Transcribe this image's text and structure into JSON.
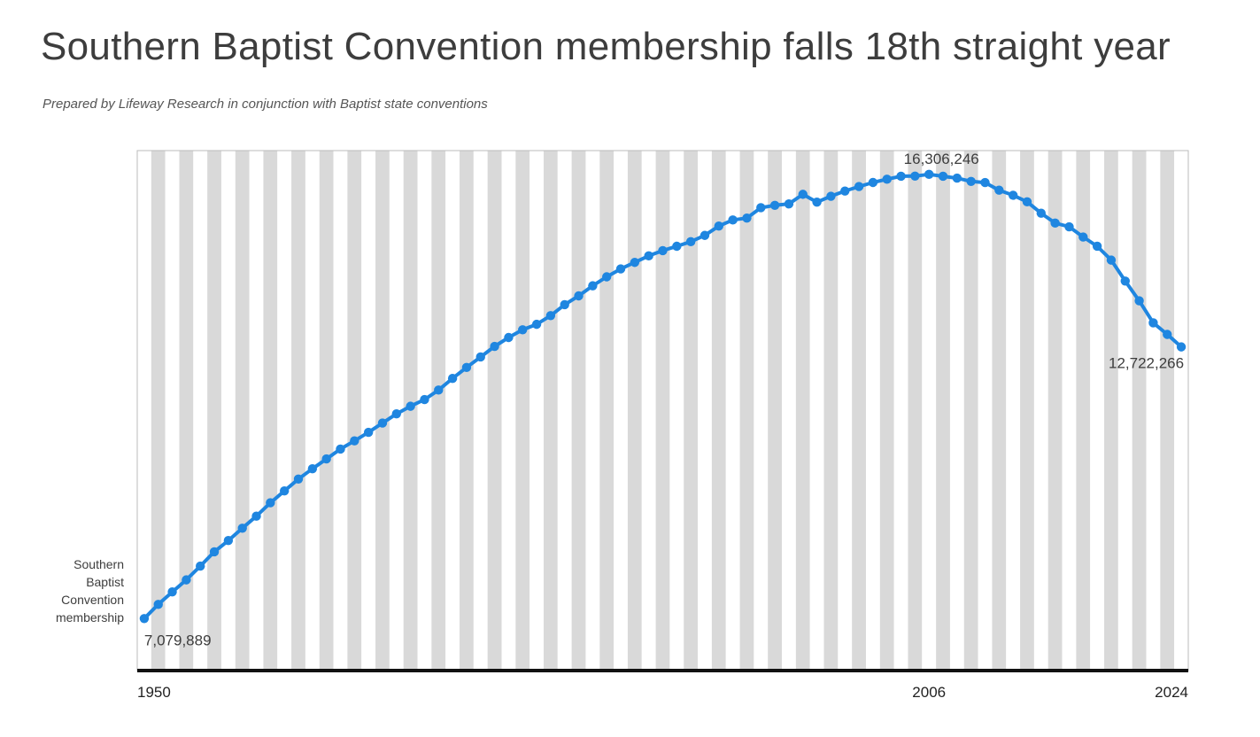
{
  "title": "Southern Baptist Convention membership falls 18th straight year",
  "subtitle": "Prepared by Lifeway Research in conjunction with Baptist state conventions",
  "colors": {
    "line": "#1f86e0",
    "stripe_gray": "#d9d9d9",
    "stripe_white": "#ffffff",
    "axis": "#111111",
    "text": "#3d3d3d"
  },
  "chart_data": {
    "type": "line",
    "title": "Southern Baptist Convention membership falls 18th straight year",
    "series_label": "Southern Baptist Convention membership",
    "series_label_lines": [
      "Southern",
      "Baptist",
      "Convention",
      "membership"
    ],
    "x_tick_labels": [
      "1950",
      "2006",
      "2024"
    ],
    "x_ticks": [
      1950,
      2006,
      2024
    ],
    "xlim": [
      1949.5,
      2024.5
    ],
    "ylim": [
      6000000,
      16800000
    ],
    "background": "alternating vertical year stripes",
    "annotations": [
      {
        "x": 1950,
        "label": "7,079,889"
      },
      {
        "x": 2006,
        "label": "16,306,246"
      },
      {
        "x": 2024,
        "label": "12,722,266"
      }
    ],
    "series": [
      {
        "name": "Southern Baptist Convention membership",
        "x": [
          1950,
          1951,
          1952,
          1953,
          1954,
          1955,
          1956,
          1957,
          1958,
          1959,
          1960,
          1961,
          1962,
          1963,
          1964,
          1965,
          1966,
          1967,
          1968,
          1969,
          1970,
          1971,
          1972,
          1973,
          1974,
          1975,
          1976,
          1977,
          1978,
          1979,
          1980,
          1981,
          1982,
          1983,
          1984,
          1985,
          1986,
          1987,
          1988,
          1989,
          1990,
          1991,
          1992,
          1993,
          1994,
          1995,
          1996,
          1997,
          1998,
          1999,
          2000,
          2001,
          2002,
          2003,
          2004,
          2005,
          2006,
          2007,
          2008,
          2009,
          2010,
          2011,
          2012,
          2013,
          2014,
          2015,
          2016,
          2017,
          2018,
          2019,
          2020,
          2021,
          2022,
          2023,
          2024
        ],
        "values": [
          7079889,
          7373498,
          7634493,
          7883708,
          8169491,
          8467439,
          8700480,
          8956647,
          9206758,
          9485276,
          9731591,
          9978139,
          10191303,
          10395940,
          10601515,
          10770573,
          10947389,
          11140486,
          11332229,
          11489613,
          11628032,
          11826463,
          12067284,
          12295400,
          12513378,
          12733124,
          12917992,
          13078239,
          13191394,
          13372757,
          13600126,
          13782644,
          13991709,
          14178051,
          14341822,
          14477364,
          14613638,
          14722617,
          14812844,
          14907826,
          15038409,
          15232347,
          15358866,
          15398642,
          15614060,
          15663296,
          15691964,
          15891514,
          15729356,
          15851756,
          15960308,
          16052920,
          16137736,
          16205050,
          16267494,
          16270315,
          16306246,
          16266920,
          16228438,
          16160088,
          16136044,
          15978112,
          15872404,
          15735640,
          15499173,
          15294764,
          15216978,
          15005638,
          14813234,
          14525579,
          14089947,
          13680493,
          13223122,
          12982090,
          12722266
        ]
      }
    ]
  }
}
